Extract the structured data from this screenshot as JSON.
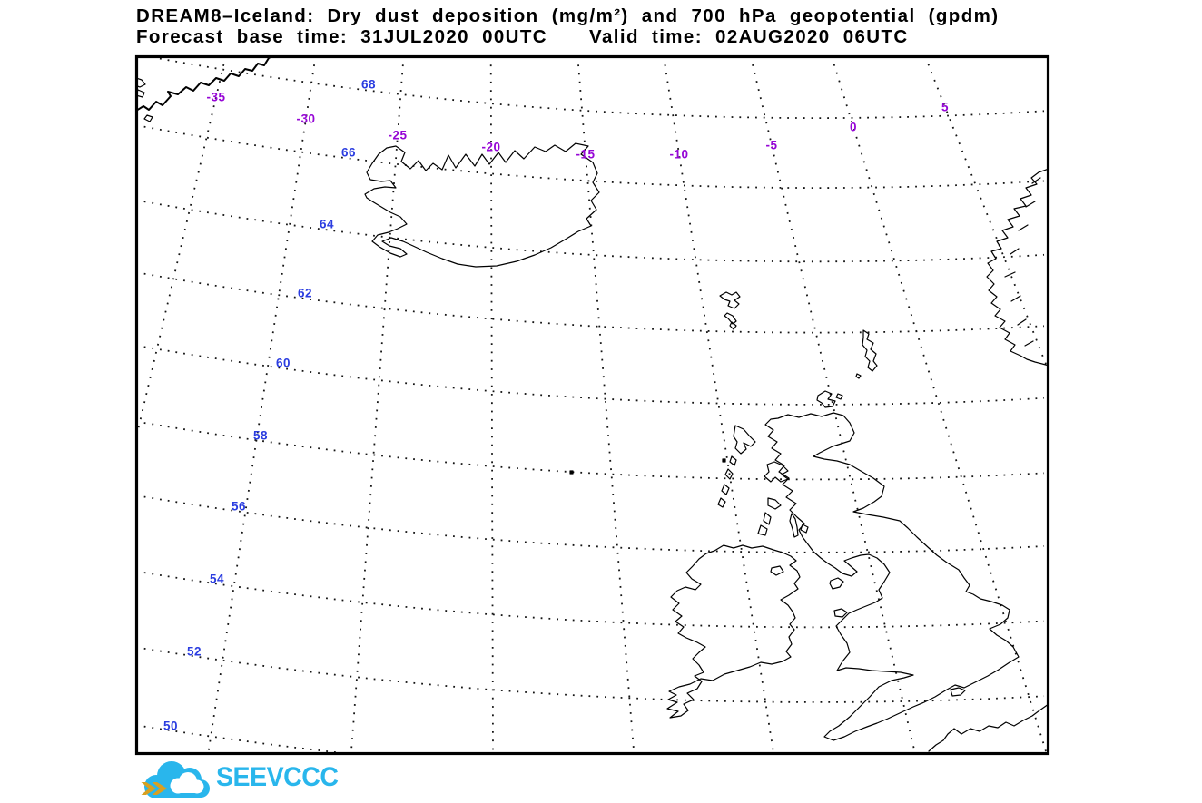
{
  "title": {
    "line1": "DREAM8–Iceland: Dry dust deposition (mg/m²) and 700 hPa geopotential (gpdm)",
    "forecast_base": "Forecast base time: 31JUL2020 00UTC",
    "valid_time": "Valid time: 02AUG2020 06UTC"
  },
  "map": {
    "graticule": {
      "lon_labels": [
        {
          "lon": -35,
          "text": "-35"
        },
        {
          "lon": -30,
          "text": "-30"
        },
        {
          "lon": -25,
          "text": "-25"
        },
        {
          "lon": -20,
          "text": "-20"
        },
        {
          "lon": -15,
          "text": "-15"
        },
        {
          "lon": -10,
          "text": "-10"
        },
        {
          "lon": -5,
          "text": "-5"
        },
        {
          "lon": 0,
          "text": "0"
        },
        {
          "lon": 5,
          "text": "5"
        }
      ],
      "lat_labels": [
        {
          "lat": 68,
          "text": "68"
        },
        {
          "lat": 66,
          "text": "66"
        },
        {
          "lat": 64,
          "text": "64"
        },
        {
          "lat": 62,
          "text": "62"
        },
        {
          "lat": 60,
          "text": "60"
        },
        {
          "lat": 58,
          "text": "58"
        },
        {
          "lat": 56,
          "text": "56"
        },
        {
          "lat": 54,
          "text": "54"
        },
        {
          "lat": 52,
          "text": "52"
        },
        {
          "lat": 50,
          "text": "50"
        }
      ],
      "lon_lines": [
        -40,
        -35,
        -30,
        -25,
        -20,
        -15,
        -10,
        -5,
        0,
        5,
        10
      ],
      "lat_lines": [
        50,
        52,
        54,
        56,
        58,
        60,
        62,
        64,
        66,
        68
      ]
    },
    "colors": {
      "lon_label": "#9606d6",
      "lat_label": "#2b3de0",
      "grid": "#141414",
      "coast": "#000000",
      "frame": "#000000",
      "background": "#ffffff"
    }
  },
  "logo": {
    "text": "SEEVCCC",
    "brand_color": "#29b6ec",
    "arrow_color": "#d7a021"
  }
}
